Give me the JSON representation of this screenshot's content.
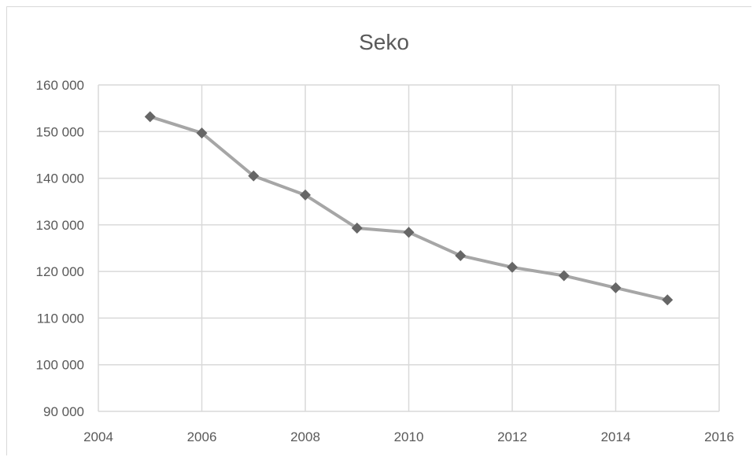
{
  "chart_data": {
    "type": "scatter",
    "title": "Seko",
    "xlabel": "",
    "ylabel": "",
    "xlim": [
      2004,
      2016
    ],
    "ylim": [
      90000,
      160000
    ],
    "x_ticks": [
      2004,
      2006,
      2008,
      2010,
      2012,
      2014,
      2016
    ],
    "x_tick_labels": [
      "2004",
      "2006",
      "2008",
      "2010",
      "2012",
      "2014",
      "2016"
    ],
    "y_ticks": [
      90000,
      100000,
      110000,
      120000,
      130000,
      140000,
      150000,
      160000
    ],
    "y_tick_labels": [
      "90 000",
      "100 000",
      "110 000",
      "120 000",
      "130 000",
      "140 000",
      "150 000",
      "160 000"
    ],
    "grid": true,
    "legend": "none",
    "series": [
      {
        "x": [
          2005,
          2006,
          2007,
          2008,
          2009,
          2010,
          2011,
          2012,
          2013,
          2014,
          2015
        ],
        "y": [
          153200,
          149700,
          140500,
          136400,
          129300,
          128400,
          123400,
          120900,
          119100,
          116500,
          113900
        ],
        "line_color": "#a6a6a6",
        "marker_color": "#666666",
        "marker": "diamond"
      }
    ]
  }
}
